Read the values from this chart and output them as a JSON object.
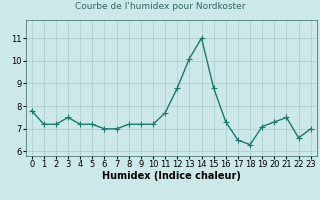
{
  "x": [
    0,
    1,
    2,
    3,
    4,
    5,
    6,
    7,
    8,
    9,
    10,
    11,
    12,
    13,
    14,
    15,
    16,
    17,
    18,
    19,
    20,
    21,
    22,
    23
  ],
  "y": [
    7.8,
    7.2,
    7.2,
    7.5,
    7.2,
    7.2,
    7.0,
    7.0,
    7.2,
    7.2,
    7.2,
    7.7,
    8.8,
    10.1,
    11.0,
    8.8,
    7.3,
    6.5,
    6.3,
    7.1,
    7.3,
    7.5,
    6.6,
    7.0
  ],
  "line_color": "#1a7a6e",
  "marker": "+",
  "marker_size": 4,
  "title": "Courbe de l'humidex pour Nordkoster",
  "xlabel": "Humidex (Indice chaleur)",
  "ylabel": "",
  "xlim": [
    -0.5,
    23.5
  ],
  "ylim": [
    5.8,
    11.8
  ],
  "yticks": [
    6,
    7,
    8,
    9,
    10,
    11
  ],
  "xticks": [
    0,
    1,
    2,
    3,
    4,
    5,
    6,
    7,
    8,
    9,
    10,
    11,
    12,
    13,
    14,
    15,
    16,
    17,
    18,
    19,
    20,
    21,
    22,
    23
  ],
  "bg_color": "#cce8e8",
  "grid_color": "#aacccc",
  "tick_label_fontsize": 6,
  "xlabel_fontsize": 7,
  "title_fontsize": 6.5,
  "line_width": 1.0
}
